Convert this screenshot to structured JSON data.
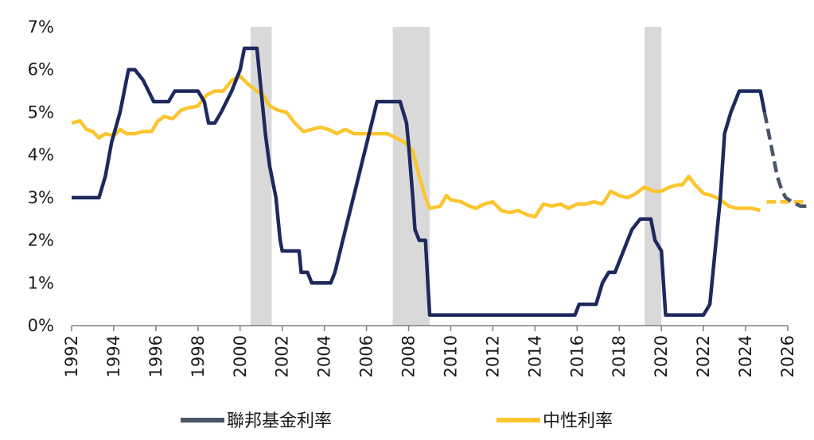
{
  "colors": {
    "fed_funds": "#1d2a5e",
    "fed_funds_projection": "#4a5568",
    "neutral": "#fcc52e",
    "neutral_projection": "#fcc52e",
    "recession": "#d9d9d9",
    "axis": "#808080"
  },
  "chart_data": {
    "type": "line",
    "title": "",
    "xlabel": "",
    "ylabel": "",
    "xlim": [
      1992,
      2026
    ],
    "ylim": [
      0,
      7
    ],
    "x_ticks": [
      "1992",
      "1994",
      "1996",
      "1998",
      "2000",
      "2002",
      "2004",
      "2006",
      "2008",
      "2010",
      "2012",
      "2014",
      "2016",
      "2018",
      "2020",
      "2022",
      "2024",
      "2026"
    ],
    "y_ticks": [
      "0%",
      "1%",
      "2%",
      "3%",
      "4%",
      "5%",
      "6%",
      "7%"
    ],
    "grid": false,
    "legend_position": "bottom",
    "recessions": [
      [
        2000.5,
        2001.5
      ],
      [
        2007.25,
        2009.0
      ],
      [
        2019.2,
        2020.0
      ]
    ],
    "series": [
      {
        "name": "聯邦基金利率",
        "values": [
          [
            1992.0,
            3.0
          ],
          [
            1993.3,
            3.0
          ],
          [
            1993.6,
            3.5
          ],
          [
            1993.9,
            4.3
          ],
          [
            1994.3,
            5.0
          ],
          [
            1994.5,
            5.5
          ],
          [
            1994.7,
            6.0
          ],
          [
            1995.0,
            6.0
          ],
          [
            1995.4,
            5.75
          ],
          [
            1995.9,
            5.25
          ],
          [
            1996.6,
            5.25
          ],
          [
            1996.9,
            5.5
          ],
          [
            1998.0,
            5.5
          ],
          [
            1998.3,
            5.25
          ],
          [
            1998.5,
            4.75
          ],
          [
            1998.8,
            4.75
          ],
          [
            1999.1,
            5.0
          ],
          [
            1999.6,
            5.5
          ],
          [
            2000.0,
            6.0
          ],
          [
            2000.2,
            6.5
          ],
          [
            2000.8,
            6.5
          ],
          [
            2001.0,
            5.5
          ],
          [
            2001.2,
            4.5
          ],
          [
            2001.4,
            3.75
          ],
          [
            2001.7,
            3.0
          ],
          [
            2001.9,
            2.0
          ],
          [
            2002.0,
            1.75
          ],
          [
            2002.8,
            1.75
          ],
          [
            2002.9,
            1.25
          ],
          [
            2003.2,
            1.25
          ],
          [
            2003.4,
            1.0
          ],
          [
            2004.3,
            1.0
          ],
          [
            2004.5,
            1.25
          ],
          [
            2005.0,
            2.25
          ],
          [
            2005.5,
            3.25
          ],
          [
            2006.0,
            4.25
          ],
          [
            2006.5,
            5.25
          ],
          [
            2007.6,
            5.25
          ],
          [
            2007.9,
            4.75
          ],
          [
            2008.0,
            4.25
          ],
          [
            2008.2,
            3.0
          ],
          [
            2008.3,
            2.25
          ],
          [
            2008.5,
            2.0
          ],
          [
            2008.8,
            2.0
          ],
          [
            2009.0,
            0.25
          ],
          [
            2015.9,
            0.25
          ],
          [
            2016.1,
            0.5
          ],
          [
            2016.9,
            0.5
          ],
          [
            2017.2,
            1.0
          ],
          [
            2017.5,
            1.25
          ],
          [
            2017.8,
            1.25
          ],
          [
            2018.2,
            1.75
          ],
          [
            2018.6,
            2.25
          ],
          [
            2019.0,
            2.5
          ],
          [
            2019.5,
            2.5
          ],
          [
            2019.7,
            2.0
          ],
          [
            2020.0,
            1.75
          ],
          [
            2020.2,
            0.25
          ],
          [
            2022.0,
            0.25
          ],
          [
            2022.3,
            0.5
          ],
          [
            2022.5,
            1.5
          ],
          [
            2022.8,
            3.0
          ],
          [
            2023.0,
            4.5
          ],
          [
            2023.3,
            5.0
          ],
          [
            2023.7,
            5.5
          ],
          [
            2024.7,
            5.5
          ],
          [
            2024.9,
            5.0
          ]
        ],
        "projection": [
          [
            2024.9,
            5.0
          ],
          [
            2025.1,
            4.5
          ],
          [
            2025.3,
            4.0
          ],
          [
            2025.5,
            3.5
          ],
          [
            2025.7,
            3.2
          ],
          [
            2025.9,
            3.0
          ],
          [
            2026.2,
            2.9
          ],
          [
            2026.6,
            2.8
          ],
          [
            2026.9,
            2.8
          ]
        ]
      },
      {
        "name": "中性利率",
        "values": [
          [
            1992.0,
            4.75
          ],
          [
            1992.4,
            4.8
          ],
          [
            1992.7,
            4.6
          ],
          [
            1993.0,
            4.55
          ],
          [
            1993.3,
            4.4
          ],
          [
            1993.6,
            4.5
          ],
          [
            1994.0,
            4.45
          ],
          [
            1994.3,
            4.6
          ],
          [
            1994.6,
            4.5
          ],
          [
            1995.0,
            4.5
          ],
          [
            1995.4,
            4.55
          ],
          [
            1995.8,
            4.55
          ],
          [
            1996.1,
            4.8
          ],
          [
            1996.4,
            4.9
          ],
          [
            1996.8,
            4.85
          ],
          [
            1997.2,
            5.05
          ],
          [
            1997.5,
            5.1
          ],
          [
            1998.0,
            5.15
          ],
          [
            1998.4,
            5.4
          ],
          [
            1998.8,
            5.5
          ],
          [
            1999.2,
            5.5
          ],
          [
            1999.6,
            5.75
          ],
          [
            2000.0,
            5.85
          ],
          [
            2000.4,
            5.65
          ],
          [
            2000.8,
            5.5
          ],
          [
            2001.1,
            5.4
          ],
          [
            2001.4,
            5.15
          ],
          [
            2001.8,
            5.05
          ],
          [
            2002.2,
            5.0
          ],
          [
            2002.6,
            4.75
          ],
          [
            2003.0,
            4.55
          ],
          [
            2003.4,
            4.6
          ],
          [
            2003.8,
            4.65
          ],
          [
            2004.2,
            4.6
          ],
          [
            2004.6,
            4.5
          ],
          [
            2005.0,
            4.6
          ],
          [
            2005.4,
            4.5
          ],
          [
            2005.8,
            4.5
          ],
          [
            2006.2,
            4.5
          ],
          [
            2006.6,
            4.5
          ],
          [
            2007.0,
            4.5
          ],
          [
            2007.4,
            4.4
          ],
          [
            2007.8,
            4.3
          ],
          [
            2008.2,
            4.1
          ],
          [
            2008.5,
            3.5
          ],
          [
            2008.8,
            3.0
          ],
          [
            2009.0,
            2.75
          ],
          [
            2009.5,
            2.8
          ],
          [
            2009.8,
            3.05
          ],
          [
            2010.0,
            2.95
          ],
          [
            2010.5,
            2.9
          ],
          [
            2010.9,
            2.8
          ],
          [
            2011.2,
            2.75
          ],
          [
            2011.6,
            2.85
          ],
          [
            2012.0,
            2.9
          ],
          [
            2012.4,
            2.7
          ],
          [
            2012.8,
            2.65
          ],
          [
            2013.2,
            2.7
          ],
          [
            2013.6,
            2.6
          ],
          [
            2014.0,
            2.55
          ],
          [
            2014.4,
            2.85
          ],
          [
            2014.8,
            2.8
          ],
          [
            2015.2,
            2.85
          ],
          [
            2015.6,
            2.75
          ],
          [
            2016.0,
            2.85
          ],
          [
            2016.4,
            2.85
          ],
          [
            2016.8,
            2.9
          ],
          [
            2017.2,
            2.85
          ],
          [
            2017.6,
            3.15
          ],
          [
            2018.0,
            3.05
          ],
          [
            2018.4,
            3.0
          ],
          [
            2018.8,
            3.1
          ],
          [
            2019.2,
            3.25
          ],
          [
            2019.6,
            3.15
          ],
          [
            2020.0,
            3.15
          ],
          [
            2020.4,
            3.25
          ],
          [
            2020.8,
            3.3
          ],
          [
            2021.0,
            3.3
          ],
          [
            2021.3,
            3.5
          ],
          [
            2021.6,
            3.3
          ],
          [
            2022.0,
            3.1
          ],
          [
            2022.4,
            3.05
          ],
          [
            2022.8,
            2.95
          ],
          [
            2023.2,
            2.8
          ],
          [
            2023.6,
            2.75
          ],
          [
            2024.0,
            2.75
          ],
          [
            2024.3,
            2.75
          ],
          [
            2024.7,
            2.7
          ]
        ],
        "projection": [
          [
            2025.0,
            2.9
          ],
          [
            2026.9,
            2.9
          ]
        ]
      }
    ]
  }
}
